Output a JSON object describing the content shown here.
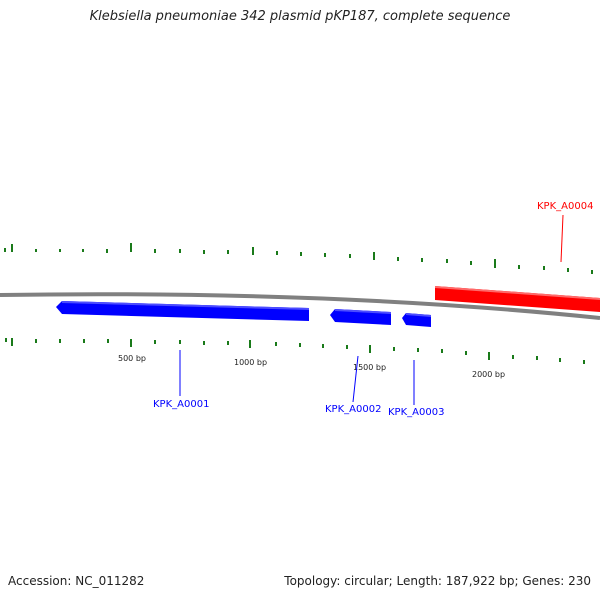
{
  "title": "Klebsiella pneumoniae 342 plasmid pKP187, complete sequence",
  "ruler_labels": [
    "500 bp",
    "1000 bp",
    "1500 bp",
    "2000 bp"
  ],
  "genes": [
    {
      "id": "KPK_A0001",
      "strand": "reverse",
      "color": "#0000ff"
    },
    {
      "id": "KPK_A0002",
      "strand": "reverse",
      "color": "#0000ff"
    },
    {
      "id": "KPK_A0003",
      "strand": "reverse",
      "color": "#0000ff"
    },
    {
      "id": "KPK_A0004",
      "strand": "forward",
      "color": "#ff0000"
    }
  ],
  "colors": {
    "backbone": "#808080",
    "tick": "#1a7a1a",
    "reverse_gene": "#0000ff",
    "forward_gene": "#ff0000"
  },
  "footer": {
    "accession": "Accession: NC_011282",
    "summary": "Topology: circular; Length: 187,922 bp; Genes: 230"
  }
}
